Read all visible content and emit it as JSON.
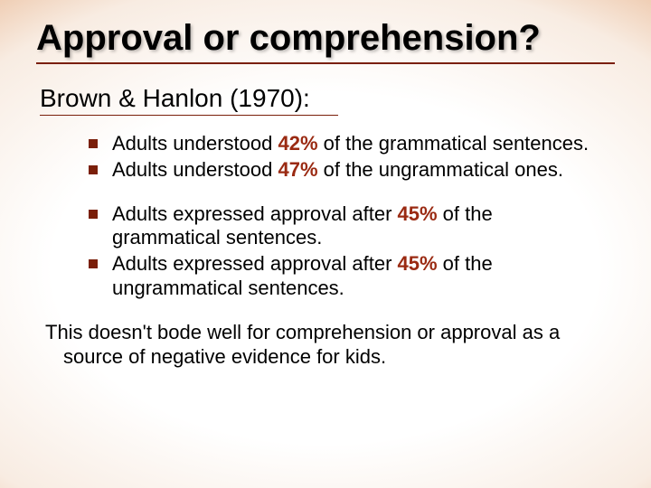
{
  "colors": {
    "accent": "#7a1f0a",
    "percent": "#9a2a12",
    "text": "#000000",
    "bg_center": "#ffffff",
    "bg_edge": "#9a3812"
  },
  "typography": {
    "title_size_pt": 40,
    "subhead_size_pt": 28,
    "body_size_pt": 22,
    "family": "Arial"
  },
  "title": "Approval or comprehension?",
  "subhead": "Brown & Hanlon (1970):",
  "group1": [
    {
      "pre": "Adults understood ",
      "pct": "42%",
      "post": " of the grammatical sentences."
    },
    {
      "pre": "Adults understood ",
      "pct": "47%",
      "post": " of the ungrammatical ones."
    }
  ],
  "group2": [
    {
      "pre": "Adults expressed approval after ",
      "pct": "45%",
      "post": " of the grammatical sentences."
    },
    {
      "pre": "Adults expressed approval after ",
      "pct": "45%",
      "post": " of the ungrammatical sentences."
    }
  ],
  "closing": "This doesn't bode well for comprehension or approval as a source of negative evidence for kids."
}
